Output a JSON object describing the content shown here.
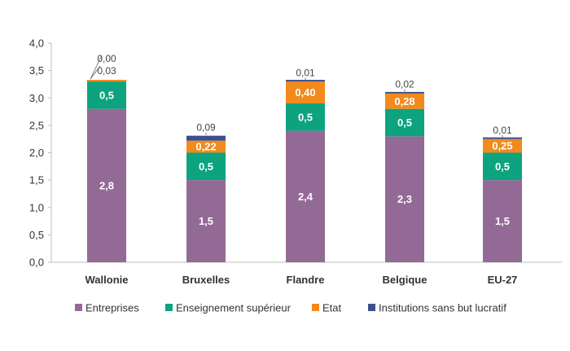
{
  "colors": {
    "axis": "#bfbfbf",
    "leader": "#7f7f7f"
  },
  "chart_data": {
    "type": "bar",
    "stacked": true,
    "categories": [
      "Wallonie",
      "Bruxelles",
      "Flandre",
      "Belgique",
      "EU-27"
    ],
    "series": [
      {
        "name": "Entreprises",
        "color": "#936a96",
        "values": [
          2.8,
          1.5,
          2.4,
          2.3,
          1.5
        ],
        "labels": [
          "2,8",
          "1,5",
          "2,4",
          "2,3",
          "1,5"
        ]
      },
      {
        "name": "Enseignement supérieur",
        "color": "#0da37f",
        "values": [
          0.5,
          0.5,
          0.5,
          0.5,
          0.5
        ],
        "labels": [
          "0,5",
          "0,5",
          "0,5",
          "0,5",
          "0,5"
        ]
      },
      {
        "name": "Etat",
        "color": "#f28a1c",
        "values": [
          0.03,
          0.22,
          0.4,
          0.28,
          0.25
        ],
        "labels": [
          "0,03",
          "0,22",
          "0,40",
          "0,28",
          "0,25"
        ]
      },
      {
        "name": "Institutions sans but lucratif",
        "color": "#3c4f8c",
        "values": [
          0.0,
          0.09,
          0.01,
          0.02,
          0.01
        ],
        "labels": [
          "0,00",
          "0,09",
          "0,01",
          "0,02",
          "0,01"
        ]
      }
    ],
    "ylim": [
      0,
      4
    ],
    "yticks": [
      "0,0",
      "0,5",
      "1,0",
      "1,5",
      "2,0",
      "2,5",
      "3,0",
      "3,5",
      "4,0"
    ],
    "legend_position": "bottom",
    "grid": false
  }
}
